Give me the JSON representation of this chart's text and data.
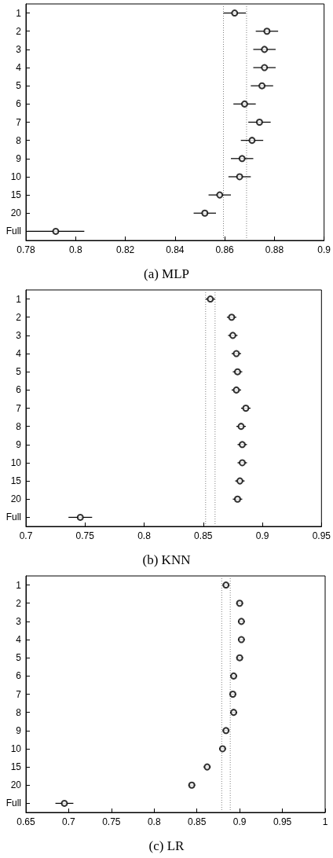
{
  "chart_data": [
    {
      "type": "scatter",
      "title": "(a) MLP",
      "orientation": "horizontal",
      "marker": "circle",
      "grid": false,
      "categories": [
        "1",
        "2",
        "3",
        "4",
        "5",
        "6",
        "7",
        "8",
        "9",
        "10",
        "15",
        "20",
        "Full"
      ],
      "series": [
        {
          "color": "#000000",
          "values": [
            0.864,
            0.877,
            0.876,
            0.876,
            0.875,
            0.868,
            0.874,
            0.871,
            0.867,
            0.866,
            0.858,
            0.852,
            0.792
          ],
          "errors": [
            0.0045,
            0.0045,
            0.0045,
            0.0045,
            0.0045,
            0.0045,
            0.0045,
            0.0045,
            0.0045,
            0.0045,
            0.0045,
            0.0045,
            0.0115
          ]
        }
      ],
      "xlim": [
        0.78,
        0.9
      ],
      "xticks": [
        0.78,
        0.8,
        0.82,
        0.84,
        0.86,
        0.88,
        0.9
      ],
      "ref_lines": [
        {
          "axis": "x",
          "value": 0.8595,
          "color": "#808080",
          "line_style": "dotted"
        },
        {
          "axis": "x",
          "value": 0.8688,
          "color": "#808080",
          "line_style": "dotted"
        }
      ]
    },
    {
      "type": "scatter",
      "title": "(b) KNN",
      "orientation": "horizontal",
      "marker": "circle",
      "grid": false,
      "categories": [
        "1",
        "2",
        "3",
        "4",
        "5",
        "6",
        "7",
        "8",
        "9",
        "10",
        "15",
        "20",
        "Full"
      ],
      "series": [
        {
          "color": "#000000",
          "values": [
            0.856,
            0.874,
            0.875,
            0.878,
            0.879,
            0.878,
            0.886,
            0.882,
            0.883,
            0.883,
            0.881,
            0.879,
            0.746
          ],
          "errors": [
            0.004,
            0.004,
            0.004,
            0.004,
            0.004,
            0.004,
            0.004,
            0.004,
            0.004,
            0.004,
            0.004,
            0.004,
            0.01
          ]
        }
      ],
      "xlim": [
        0.7,
        0.95
      ],
      "xticks": [
        0.7,
        0.75,
        0.8,
        0.85,
        0.9,
        0.95
      ],
      "ref_lines": [
        {
          "axis": "x",
          "value": 0.852,
          "color": "#808080",
          "line_style": "dotted"
        },
        {
          "axis": "x",
          "value": 0.86,
          "color": "#808080",
          "line_style": "dotted"
        }
      ]
    },
    {
      "type": "scatter",
      "title": "(c) LR",
      "orientation": "horizontal",
      "marker": "circle",
      "grid": false,
      "categories": [
        "1",
        "2",
        "3",
        "4",
        "5",
        "6",
        "7",
        "8",
        "9",
        "10",
        "15",
        "20",
        "Full"
      ],
      "series": [
        {
          "color": "#000000",
          "values": [
            0.884,
            0.9,
            0.902,
            0.902,
            0.9,
            0.893,
            0.892,
            0.893,
            0.884,
            0.88,
            0.862,
            0.844,
            0.695
          ],
          "errors": [
            0.004,
            0.004,
            0.004,
            0.004,
            0.004,
            0.004,
            0.004,
            0.004,
            0.004,
            0.004,
            0.004,
            0.004,
            0.0105
          ]
        }
      ],
      "xlim": [
        0.65,
        1
      ],
      "xticks": [
        0.65,
        0.7,
        0.75,
        0.8,
        0.85,
        0.9,
        0.95,
        1
      ],
      "ref_lines": [
        {
          "axis": "x",
          "value": 0.879,
          "color": "#808080",
          "line_style": "dotted"
        },
        {
          "axis": "x",
          "value": 0.889,
          "color": "#808080",
          "line_style": "dotted"
        }
      ]
    }
  ]
}
